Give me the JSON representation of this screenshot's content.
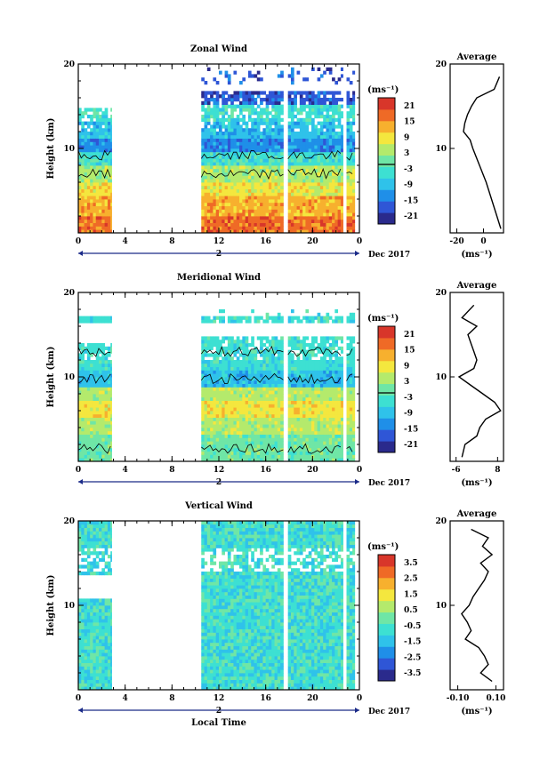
{
  "chart_data": [
    {
      "type": "heatmap",
      "title": "Zonal Wind",
      "ylabel": "Height (km)",
      "ylim": [
        0,
        20
      ],
      "yticks": [
        "20",
        "10"
      ],
      "xlim": [
        0,
        24
      ],
      "xticks": [
        "0",
        "4",
        "8",
        "12",
        "16",
        "20",
        "0"
      ],
      "date_label": "2",
      "date_suffix": "Dec 2017",
      "colorbar": {
        "unit": "(ms⁻¹)",
        "ticks": [
          "21",
          "15",
          "9",
          "3",
          "-3",
          "-9",
          "-15",
          "-21"
        ],
        "contour_at": "0"
      },
      "profile": {
        "title": "Average",
        "xticks": [
          "-20",
          "0"
        ],
        "xlim": [
          -25,
          15
        ],
        "xlabel": "(ms⁻¹)",
        "yticks": [
          "20",
          "10"
        ],
        "heights": [
          0.5,
          2,
          4,
          6,
          8,
          10,
          11,
          12,
          13,
          14,
          15,
          16,
          17,
          18.5
        ],
        "values": [
          13,
          10,
          6,
          2,
          -3,
          -8,
          -10,
          -15,
          -14,
          -12,
          -9,
          -5,
          8,
          12
        ]
      }
    },
    {
      "type": "heatmap",
      "title": "Meridional Wind",
      "ylabel": "Height (km)",
      "ylim": [
        0,
        20
      ],
      "yticks": [
        "20",
        "10"
      ],
      "xlim": [
        0,
        24
      ],
      "xticks": [
        "0",
        "4",
        "8",
        "12",
        "16",
        "20",
        "0"
      ],
      "date_label": "2",
      "date_suffix": "Dec 2017",
      "colorbar": {
        "unit": "(ms⁻¹)",
        "ticks": [
          "21",
          "15",
          "9",
          "3",
          "-3",
          "-9",
          "-15",
          "-21"
        ],
        "contour_at": "0"
      },
      "profile": {
        "title": "Average",
        "xticks": [
          "-6",
          "8"
        ],
        "xlim": [
          -8,
          10
        ],
        "xlabel": "(ms⁻¹)",
        "yticks": [
          "20",
          "10"
        ],
        "heights": [
          0.5,
          2,
          3,
          4,
          5,
          6,
          7,
          8,
          9,
          10,
          11,
          12,
          13,
          14,
          15,
          16,
          17,
          18.5
        ],
        "values": [
          -4,
          -3,
          1,
          2,
          4,
          9,
          7,
          3,
          -1,
          -5,
          0,
          1,
          0,
          -1,
          -2,
          1,
          -4,
          0
        ]
      }
    },
    {
      "type": "heatmap",
      "title": "Vertical Wind",
      "ylabel": "Height (km)",
      "ylim": [
        0,
        20
      ],
      "yticks": [
        "20",
        "10"
      ],
      "xlim": [
        0,
        24
      ],
      "xticks": [
        "0",
        "4",
        "8",
        "12",
        "16",
        "20",
        "0"
      ],
      "date_label": "2",
      "date_suffix": "Dec 2017",
      "xlabel": "Local Time",
      "colorbar": {
        "unit": "(ms⁻¹)",
        "ticks": [
          "3.5",
          "2.5",
          "1.5",
          "0.5",
          "-0.5",
          "-1.5",
          "-2.5",
          "-3.5"
        ]
      },
      "profile": {
        "title": "Average",
        "xticks": [
          "-0.10",
          "0.10"
        ],
        "xlim": [
          -0.14,
          0.14
        ],
        "xlabel": "(ms⁻¹)",
        "yticks": [
          "20",
          "10"
        ],
        "heights": [
          1,
          2,
          3,
          4,
          5,
          6,
          7,
          8,
          9,
          10,
          11,
          12,
          13,
          14,
          15,
          16,
          17,
          18,
          19
        ],
        "values": [
          0.08,
          0.02,
          0.06,
          0.04,
          0.01,
          -0.06,
          -0.03,
          -0.05,
          -0.08,
          -0.04,
          -0.02,
          0.01,
          0.04,
          0.06,
          0.02,
          0.08,
          0.03,
          0.06,
          -0.03
        ]
      }
    }
  ],
  "colors": {
    "scale": [
      "#2a2a8c",
      "#2f56d6",
      "#1f8fe8",
      "#2fc2ea",
      "#3de0d2",
      "#6fe6a6",
      "#b4ea6c",
      "#f4e73e",
      "#f7b02e",
      "#ef6a26",
      "#d8362a"
    ]
  }
}
